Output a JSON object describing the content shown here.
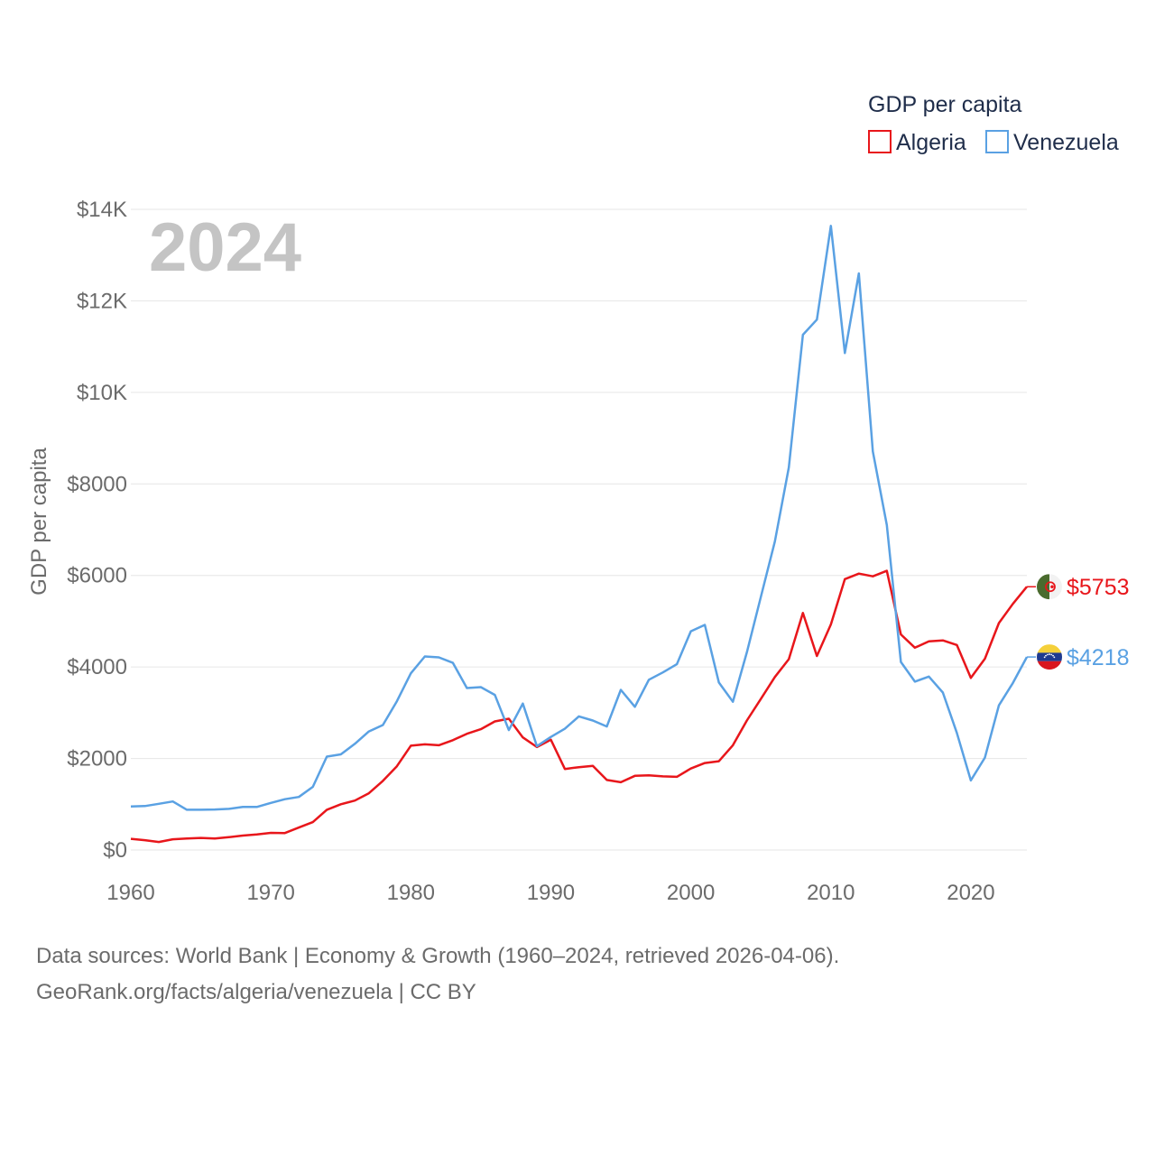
{
  "chart_data": {
    "type": "line",
    "year_label": "2024",
    "ylabel": "GDP per capita",
    "ylim": [
      0,
      14000
    ],
    "xlim": [
      1960,
      2024
    ],
    "y_ticks": [
      {
        "value": 0,
        "label": "$0"
      },
      {
        "value": 2000,
        "label": "$2000"
      },
      {
        "value": 4000,
        "label": "$4000"
      },
      {
        "value": 6000,
        "label": "$6000"
      },
      {
        "value": 8000,
        "label": "$8000"
      },
      {
        "value": 10000,
        "label": "$10K"
      },
      {
        "value": 12000,
        "label": "$12K"
      },
      {
        "value": 14000,
        "label": "$14K"
      }
    ],
    "x_ticks": [
      {
        "value": 1960,
        "label": "1960"
      },
      {
        "value": 1970,
        "label": "1970"
      },
      {
        "value": 1980,
        "label": "1980"
      },
      {
        "value": 1990,
        "label": "1990"
      },
      {
        "value": 2000,
        "label": "2000"
      },
      {
        "value": 2010,
        "label": "2010"
      },
      {
        "value": 2020,
        "label": "2020"
      }
    ],
    "legend_title": "GDP per capita",
    "series": [
      {
        "name": "Algeria",
        "color": "#e8161b",
        "end_label": "$5753",
        "flag": "algeria-flag",
        "x": [
          1960,
          1961,
          1962,
          1963,
          1964,
          1965,
          1966,
          1967,
          1968,
          1969,
          1970,
          1971,
          1972,
          1973,
          1974,
          1975,
          1976,
          1977,
          1978,
          1979,
          1980,
          1981,
          1982,
          1983,
          1984,
          1985,
          1986,
          1987,
          1988,
          1989,
          1990,
          1991,
          1992,
          1993,
          1994,
          1995,
          1996,
          1997,
          1998,
          1999,
          2000,
          2001,
          2002,
          2003,
          2004,
          2005,
          2006,
          2007,
          2008,
          2009,
          2010,
          2011,
          2012,
          2013,
          2014,
          2015,
          2016,
          2017,
          2018,
          2019,
          2020,
          2021,
          2022,
          2023,
          2024
        ],
        "values": [
          245,
          215,
          175,
          235,
          250,
          265,
          250,
          280,
          315,
          340,
          375,
          370,
          490,
          610,
          880,
          1000,
          1080,
          1240,
          1510,
          1830,
          2280,
          2310,
          2290,
          2400,
          2540,
          2640,
          2810,
          2870,
          2460,
          2250,
          2410,
          1770,
          1810,
          1840,
          1530,
          1480,
          1620,
          1630,
          1610,
          1600,
          1780,
          1900,
          1940,
          2290,
          2830,
          3300,
          3780,
          4170,
          5180,
          4240,
          4930,
          5920,
          6040,
          5980,
          6100,
          4710,
          4420,
          4560,
          4580,
          4480,
          3760,
          4180,
          4960,
          5380,
          5753
        ]
      },
      {
        "name": "Venezuela",
        "color": "#5aa1e3",
        "end_label": "$4218",
        "flag": "venezuela-flag",
        "x": [
          1960,
          1961,
          1962,
          1963,
          1964,
          1965,
          1966,
          1967,
          1968,
          1969,
          1970,
          1971,
          1972,
          1973,
          1974,
          1975,
          1976,
          1977,
          1978,
          1979,
          1980,
          1981,
          1982,
          1983,
          1984,
          1985,
          1986,
          1987,
          1988,
          1989,
          1990,
          1991,
          1992,
          1993,
          1994,
          1995,
          1996,
          1997,
          1998,
          1999,
          2000,
          2001,
          2002,
          2003,
          2004,
          2005,
          2006,
          2007,
          2008,
          2009,
          2010,
          2011,
          2012,
          2013,
          2014,
          2015,
          2016,
          2017,
          2018,
          2019,
          2020,
          2021,
          2022,
          2023,
          2024
        ],
        "values": [
          950,
          960,
          1010,
          1060,
          880,
          880,
          885,
          900,
          940,
          940,
          1030,
          1110,
          1160,
          1380,
          2040,
          2090,
          2320,
          2590,
          2730,
          3250,
          3860,
          4230,
          4210,
          4090,
          3540,
          3560,
          3390,
          2620,
          3200,
          2270,
          2470,
          2650,
          2920,
          2830,
          2700,
          3500,
          3130,
          3720,
          3880,
          4060,
          4780,
          4920,
          3660,
          3240,
          4320,
          5530,
          6740,
          8360,
          11260,
          11590,
          13640,
          10860,
          12600,
          8710,
          7100,
          4110,
          3680,
          3790,
          3440,
          2560,
          1520,
          2020,
          3160,
          3650,
          4218
        ]
      }
    ]
  },
  "footer": {
    "line1": "Data sources: World Bank | Economy & Growth (1960–2024, retrieved 2026-04-06).",
    "line2": "GeoRank.org/facts/algeria/venezuela | CC BY"
  }
}
